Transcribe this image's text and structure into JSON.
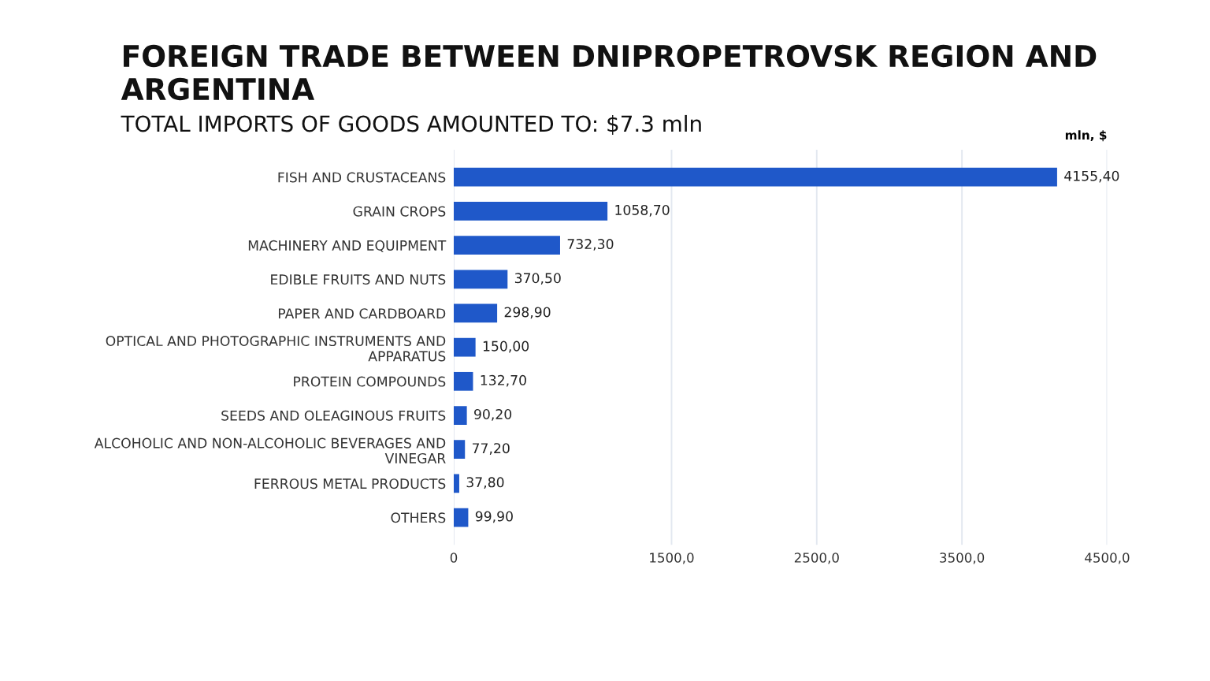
{
  "chart_data": {
    "type": "bar",
    "orientation": "horizontal",
    "title": "FOREIGN TRADE BETWEEN DNIPROPETROVSK REGION AND ARGENTINA",
    "subtitle": "TOTAL IMPORTS OF GOODS AMOUNTED TO: $7.3 mln",
    "categories": [
      "FISH AND CRUSTACEANS",
      "GRAIN CROPS",
      "MACHINERY AND EQUIPMENT",
      "EDIBLE FRUITS AND NUTS",
      "PAPER AND CARDBOARD",
      "OPTICAL AND PHOTOGRAPHIC INSTRUMENTS AND\nAPPARATUS",
      "PROTEIN COMPOUNDS",
      "SEEDS AND OLEAGINOUS FRUITS",
      "ALCOHOLIC AND NON-ALCOHOLIC BEVERAGES AND\nVINEGAR",
      "FERROUS METAL PRODUCTS",
      "OTHERS"
    ],
    "values": [
      4155.4,
      1058.7,
      732.3,
      370.5,
      298.9,
      150.0,
      132.7,
      90.2,
      77.2,
      37.8,
      99.9
    ],
    "value_labels": [
      "4155,40",
      "1058,70",
      "732,30",
      "370,50",
      "298,90",
      "150,00",
      "132,70",
      "90,20",
      "77,20",
      "37,80",
      "99,90"
    ],
    "color": "#1f58c9",
    "xlim": [
      0,
      4500
    ],
    "xticks": [
      0,
      {
        "value": 1500,
        "label": "1500,0"
      },
      {
        "value": 2500,
        "label": "2500,0"
      },
      {
        "value": 3500,
        "label": "3500,0"
      },
      {
        "value": 4500,
        "label": "4500,0"
      }
    ],
    "grid": "x",
    "annotations": [
      "mln, $"
    ]
  }
}
